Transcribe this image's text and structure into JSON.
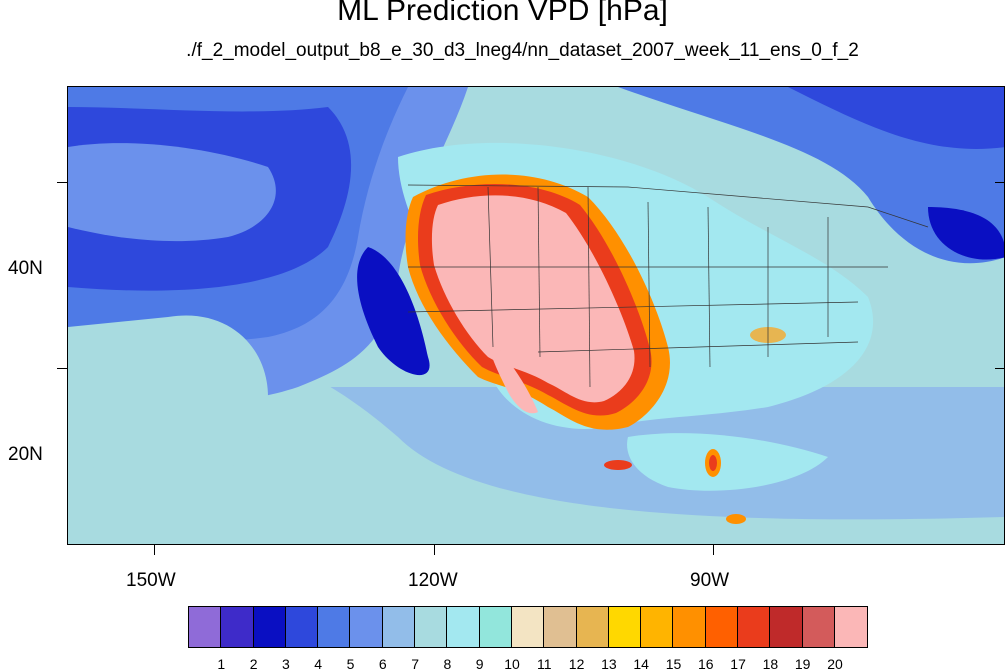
{
  "title": "ML Prediction VPD [hPa]",
  "subtitle": "./f_2_model_output_b8_e_30_d3_lneg4/nn_dataset_2007_week_11_ens_0_f_2",
  "axes": {
    "lat_labels": [
      "40N",
      "20N"
    ],
    "lon_labels": [
      "150W",
      "120W",
      "90W"
    ]
  },
  "colorbar": {
    "colors": [
      "#8f6bd8",
      "#3e2bc9",
      "#0a0fc2",
      "#2e48dc",
      "#4e7ae6",
      "#6b91ec",
      "#92bde9",
      "#a8dbe0",
      "#a3e8f0",
      "#92e6dc",
      "#f3e4c3",
      "#e0bf92",
      "#e7b551",
      "#ffd800",
      "#ffb400",
      "#ff9000",
      "#ff6000",
      "#ea3c1c",
      "#bf2a2a",
      "#d35b5b",
      "#fbb7b7"
    ],
    "labels": [
      "1",
      "2",
      "3",
      "4",
      "5",
      "6",
      "7",
      "8",
      "9",
      "10",
      "11",
      "12",
      "13",
      "14",
      "15",
      "16",
      "17",
      "18",
      "19",
      "20"
    ]
  }
}
